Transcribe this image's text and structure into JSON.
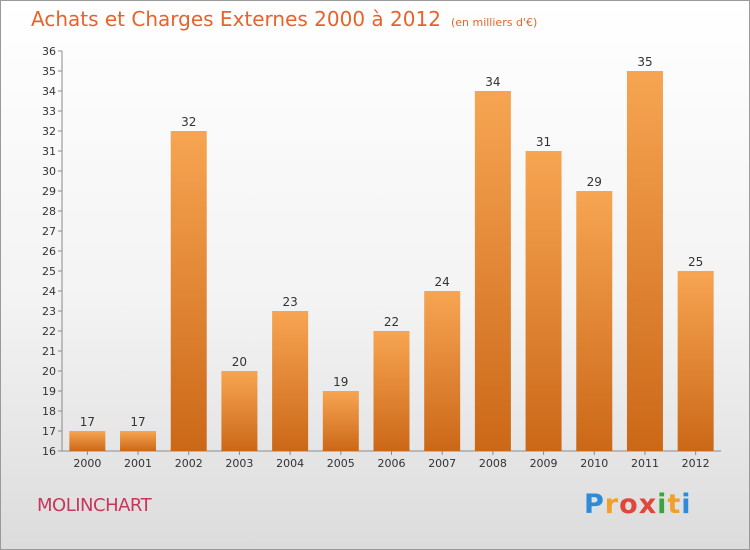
{
  "header": {
    "title": "Achats et Charges Externes 2000 à 2012",
    "unit": "(en milliers d'€)"
  },
  "location": "MOLINCHART",
  "logo": "Proxiti",
  "colors": {
    "title": "#e8622b",
    "bar_light": "#f6a24f",
    "bar_dark": "#cc6a1a",
    "location": "#c8365a"
  },
  "chart_data": {
    "type": "bar",
    "title": "Achats et Charges Externes 2000 à 2012",
    "subtitle": "(en milliers d'€)",
    "xlabel": "",
    "ylabel": "",
    "categories": [
      "2000",
      "2001",
      "2002",
      "2003",
      "2004",
      "2005",
      "2006",
      "2007",
      "2008",
      "2009",
      "2010",
      "2011",
      "2012"
    ],
    "values": [
      17,
      17,
      32,
      20,
      23,
      19,
      22,
      24,
      34,
      31,
      29,
      35,
      25
    ],
    "ylim": [
      16,
      36
    ],
    "yticks": [
      16,
      17,
      18,
      19,
      20,
      21,
      22,
      23,
      24,
      25,
      26,
      27,
      28,
      29,
      30,
      31,
      32,
      33,
      34,
      35,
      36
    ],
    "grid": false,
    "data_labels": true
  }
}
